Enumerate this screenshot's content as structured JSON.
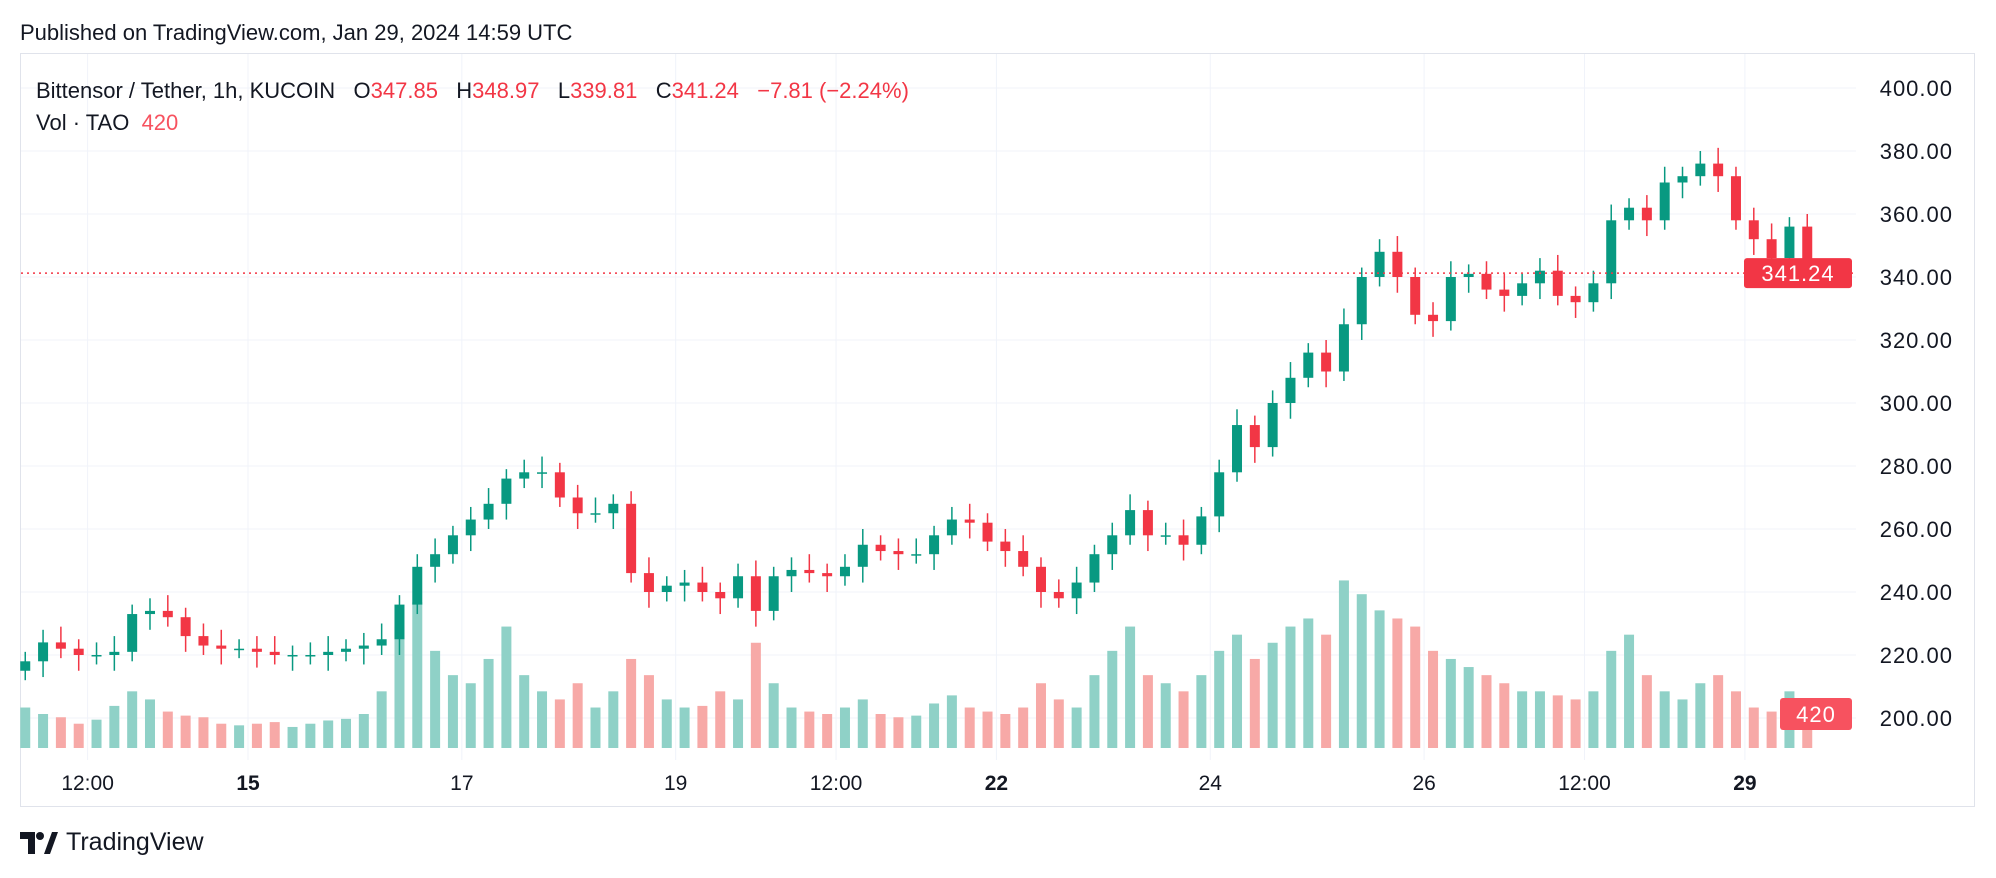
{
  "header": {
    "published": "Published on TradingView.com, Jan 29, 2024 14:59 UTC"
  },
  "legend": {
    "symbol": "Bittensor / Tether, 1h, KUCOIN",
    "o_label": "O",
    "o": "347.85",
    "h_label": "H",
    "h": "348.97",
    "l_label": "L",
    "l": "339.81",
    "c_label": "C",
    "c": "341.24",
    "change": "−7.81 (−2.24%)",
    "vol_label": "Vol · TAO",
    "vol": "420"
  },
  "logo": {
    "text": "TradingView"
  },
  "colors": {
    "up": "#089981",
    "down": "#f23645",
    "vol_up": "#8fd1c7",
    "vol_down": "#f7a9a7",
    "grid": "#f0f3fa",
    "price_label": "#f23645",
    "vol_label": "#f7525f"
  },
  "chart_data": {
    "type": "candlestick",
    "title": "Bittensor / Tether, 1h, KUCOIN",
    "ylim": [
      200,
      400
    ],
    "y_ticks": [
      "400.00",
      "380.00",
      "360.00",
      "340.00",
      "320.00",
      "300.00",
      "280.00",
      "260.00",
      "240.00",
      "220.00",
      "200.00"
    ],
    "x_ticks": [
      {
        "label": "12:00",
        "time": "2024-01-13 12:00",
        "bold": false
      },
      {
        "label": "15",
        "time": "2024-01-15 00:00",
        "bold": true
      },
      {
        "label": "17",
        "time": "2024-01-17 00:00",
        "bold": false
      },
      {
        "label": "19",
        "time": "2024-01-19 00:00",
        "bold": false
      },
      {
        "label": "12:00",
        "time": "2024-01-20 12:00",
        "bold": false
      },
      {
        "label": "22",
        "time": "2024-01-22 00:00",
        "bold": true
      },
      {
        "label": "24",
        "time": "2024-01-24 00:00",
        "bold": false
      },
      {
        "label": "26",
        "time": "2024-01-26 00:00",
        "bold": false
      },
      {
        "label": "12:00",
        "time": "2024-01-27 12:00",
        "bold": false
      },
      {
        "label": "29",
        "time": "2024-01-29 00:00",
        "bold": true
      }
    ],
    "sampling": "approximate closes every 4h",
    "start_time": "2024-01-12 22:00",
    "close": [
      218,
      224,
      222,
      220,
      220,
      221,
      233,
      234,
      232,
      226,
      223,
      222,
      222,
      221,
      220,
      220,
      220,
      221,
      222,
      223,
      225,
      236,
      248,
      252,
      258,
      263,
      268,
      276,
      278,
      278,
      270,
      265,
      265,
      268,
      246,
      240,
      242,
      243,
      240,
      238,
      245,
      234,
      245,
      247,
      246,
      245,
      248,
      255,
      253,
      252,
      252,
      258,
      263,
      262,
      256,
      253,
      248,
      240,
      238,
      243,
      252,
      258,
      266,
      258,
      258,
      255,
      264,
      278,
      293,
      286,
      300,
      308,
      316,
      310,
      325,
      340,
      348,
      340,
      328,
      326,
      340,
      341,
      336,
      334,
      338,
      342,
      334,
      332,
      338,
      358,
      362,
      358,
      370,
      372,
      376,
      372,
      358,
      352,
      346,
      356,
      341.24
    ],
    "volume": [
      500,
      420,
      380,
      300,
      350,
      520,
      700,
      600,
      450,
      400,
      380,
      300,
      280,
      300,
      320,
      260,
      300,
      340,
      360,
      420,
      700,
      1500,
      1800,
      1200,
      900,
      800,
      1100,
      1500,
      900,
      700,
      600,
      800,
      500,
      700,
      1100,
      900,
      600,
      500,
      520,
      700,
      600,
      1300,
      800,
      500,
      450,
      420,
      500,
      600,
      420,
      380,
      400,
      550,
      650,
      500,
      450,
      420,
      500,
      800,
      600,
      500,
      900,
      1200,
      1500,
      900,
      800,
      700,
      900,
      1200,
      1400,
      1100,
      1300,
      1500,
      1600,
      1400,
      2070,
      1900,
      1700,
      1600,
      1500,
      1200,
      1100,
      1000,
      900,
      800,
      700,
      700,
      650,
      600,
      700,
      1200,
      1400,
      900,
      700,
      600,
      800,
      900,
      700,
      500,
      450,
      700,
      420
    ],
    "last_price": "341.24",
    "last_volume": "420"
  }
}
